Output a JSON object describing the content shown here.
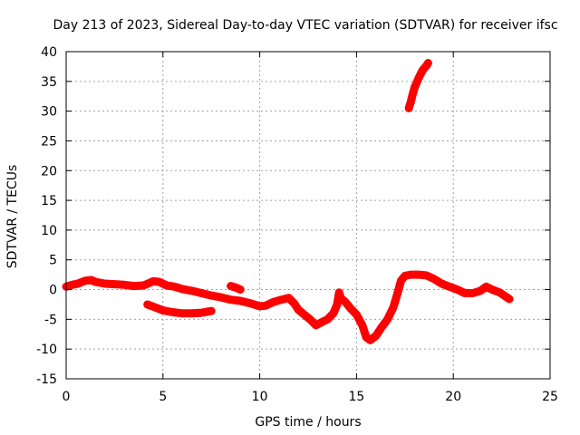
{
  "chart_data": {
    "type": "scatter",
    "title": "Day 213 of 2023, Sidereal Day-to-day VTEC variation (SDTVAR) for receiver ifsc",
    "xlabel": "GPS time / hours",
    "ylabel": "SDTVAR / TECUs",
    "xlim": [
      0,
      25
    ],
    "ylim": [
      -15,
      40
    ],
    "xticks": [
      0,
      5,
      10,
      15,
      20,
      25
    ],
    "yticks": [
      -15,
      -10,
      -5,
      0,
      5,
      10,
      15,
      20,
      25,
      30,
      35,
      40
    ],
    "grid": true,
    "marker": "+",
    "series": [
      {
        "name": "SDTVAR",
        "color": "#ff0000",
        "segments": [
          [
            [
              0.0,
              0.5
            ],
            [
              0.3,
              0.8
            ],
            [
              0.6,
              1.0
            ],
            [
              1.0,
              1.5
            ],
            [
              1.3,
              1.6
            ],
            [
              1.5,
              1.3
            ],
            [
              2.0,
              1.0
            ],
            [
              2.5,
              0.9
            ],
            [
              3.0,
              0.8
            ],
            [
              3.5,
              0.6
            ],
            [
              4.0,
              0.7
            ],
            [
              4.5,
              1.4
            ],
            [
              4.8,
              1.3
            ],
            [
              5.2,
              0.7
            ],
            [
              5.6,
              0.5
            ],
            [
              6.0,
              0.1
            ],
            [
              6.5,
              -0.2
            ],
            [
              7.0,
              -0.6
            ],
            [
              7.5,
              -1.0
            ],
            [
              8.0,
              -1.3
            ],
            [
              8.5,
              -1.7
            ],
            [
              9.0,
              -1.9
            ],
            [
              9.5,
              -2.3
            ],
            [
              10.0,
              -2.8
            ],
            [
              10.3,
              -2.7
            ],
            [
              10.7,
              -2.1
            ],
            [
              11.0,
              -1.8
            ],
            [
              11.5,
              -1.4
            ],
            [
              11.8,
              -2.4
            ],
            [
              12.0,
              -3.4
            ],
            [
              12.3,
              -4.2
            ],
            [
              12.6,
              -5.0
            ],
            [
              12.9,
              -6.0
            ],
            [
              13.2,
              -5.5
            ],
            [
              13.5,
              -5.0
            ],
            [
              13.8,
              -4.0
            ],
            [
              14.0,
              -2.5
            ],
            [
              14.1,
              -0.5
            ],
            [
              14.2,
              -1.5
            ],
            [
              14.4,
              -2.0
            ],
            [
              14.7,
              -3.2
            ],
            [
              15.0,
              -4.2
            ],
            [
              15.3,
              -6.0
            ],
            [
              15.5,
              -8.0
            ],
            [
              15.7,
              -8.5
            ],
            [
              16.0,
              -7.8
            ],
            [
              16.3,
              -6.3
            ],
            [
              16.6,
              -5.0
            ],
            [
              16.9,
              -3.0
            ],
            [
              17.1,
              -0.8
            ],
            [
              17.3,
              1.5
            ],
            [
              17.5,
              2.3
            ],
            [
              17.8,
              2.5
            ],
            [
              18.2,
              2.5
            ],
            [
              18.6,
              2.4
            ],
            [
              19.0,
              1.8
            ],
            [
              19.4,
              1.0
            ],
            [
              19.8,
              0.5
            ],
            [
              20.2,
              0.0
            ],
            [
              20.6,
              -0.6
            ],
            [
              21.0,
              -0.6
            ],
            [
              21.4,
              -0.2
            ],
            [
              21.7,
              0.5
            ],
            [
              22.0,
              0.0
            ],
            [
              22.4,
              -0.5
            ],
            [
              22.9,
              -1.6
            ]
          ],
          [
            [
              4.2,
              -2.5
            ],
            [
              4.6,
              -3.0
            ],
            [
              5.0,
              -3.5
            ],
            [
              5.5,
              -3.8
            ],
            [
              6.0,
              -4.0
            ],
            [
              6.5,
              -4.0
            ],
            [
              7.0,
              -3.9
            ],
            [
              7.5,
              -3.6
            ]
          ],
          [
            [
              8.5,
              0.6
            ],
            [
              8.8,
              0.3
            ],
            [
              9.0,
              0.0
            ]
          ],
          [
            [
              17.7,
              30.5
            ],
            [
              17.8,
              31.5
            ],
            [
              17.9,
              32.8
            ],
            [
              18.0,
              34.0
            ],
            [
              18.2,
              35.5
            ],
            [
              18.4,
              36.8
            ],
            [
              18.6,
              37.6
            ],
            [
              18.7,
              38.1
            ]
          ]
        ]
      }
    ]
  }
}
